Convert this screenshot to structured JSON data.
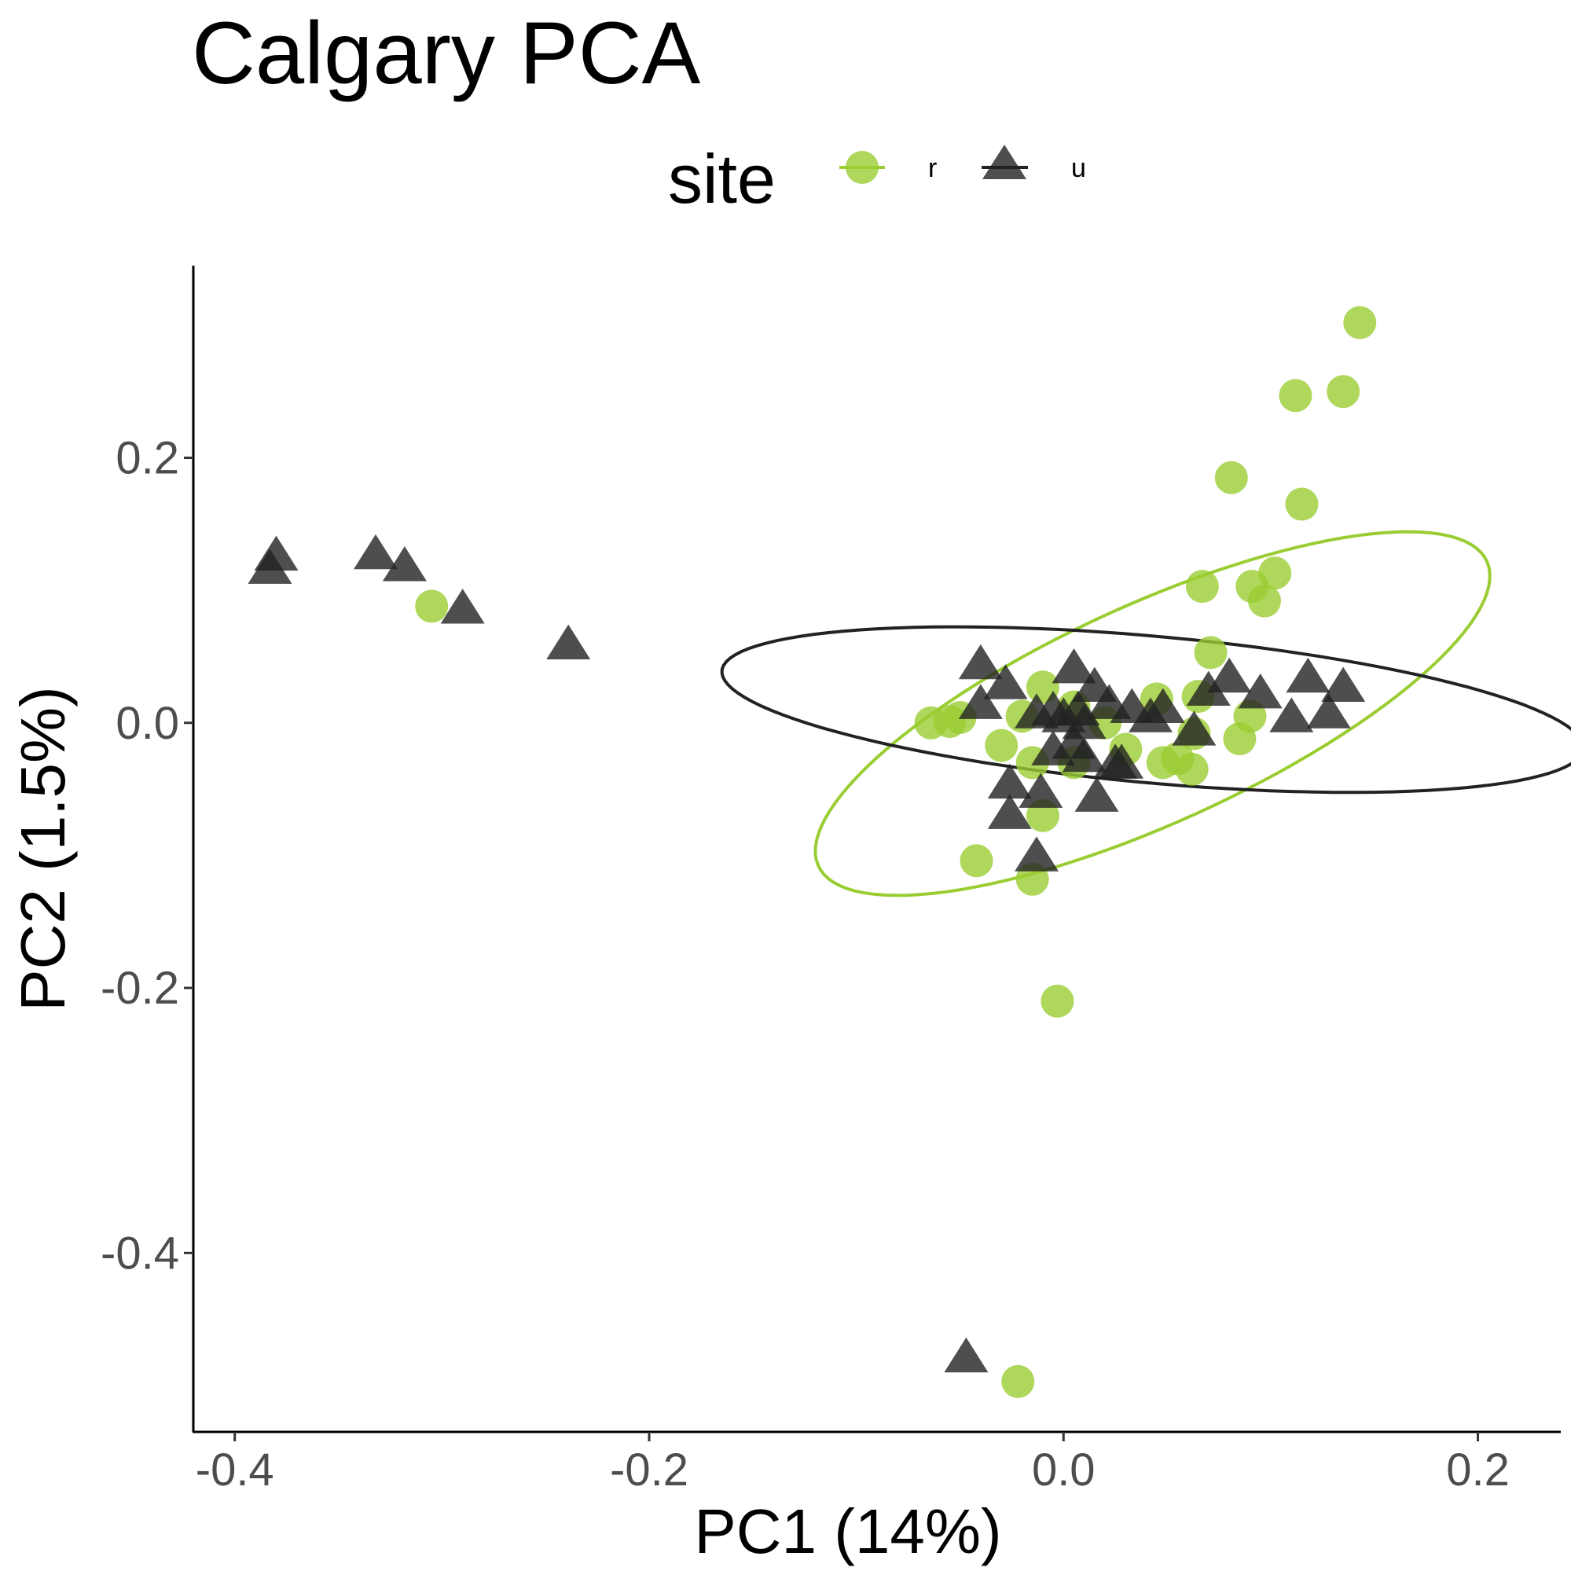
{
  "chart_data": {
    "type": "scatter",
    "title": "Calgary PCA",
    "xlabel": "PC1 (14%)",
    "ylabel": "PC2 (1.5%)",
    "xlim": [
      -0.42,
      0.24
    ],
    "ylim": [
      -0.535,
      0.345
    ],
    "xticks": [
      -0.4,
      -0.2,
      0.0,
      0.2
    ],
    "xtick_labels": [
      "-0.4",
      "-0.2",
      "0.0",
      "0.2"
    ],
    "yticks": [
      -0.4,
      -0.2,
      0.0,
      0.2
    ],
    "ytick_labels": [
      "-0.4",
      "-0.2",
      "0.0",
      "0.2"
    ],
    "grid": false,
    "legend": {
      "title": "site",
      "placement": "top",
      "labels": [
        "r",
        "u"
      ]
    },
    "series": [
      {
        "name": "r",
        "marker": "circle",
        "color": "#9acd32",
        "ellipse": {
          "cx": 0.043,
          "cy": 0.007,
          "a": 0.2,
          "b": 0.073,
          "angle_deg": 38.6
        },
        "points": [
          [
            0.143,
            0.302
          ],
          [
            0.135,
            0.25
          ],
          [
            0.112,
            0.247
          ],
          [
            0.081,
            0.185
          ],
          [
            0.115,
            0.165
          ],
          [
            0.102,
            0.113
          ],
          [
            0.067,
            0.103
          ],
          [
            0.091,
            0.103
          ],
          [
            0.097,
            0.092
          ],
          [
            0.071,
            0.053
          ],
          [
            -0.305,
            0.088
          ],
          [
            -0.064,
            0.0
          ],
          [
            -0.055,
            0.001
          ],
          [
            -0.05,
            0.004
          ],
          [
            -0.01,
            0.027
          ],
          [
            -0.02,
            0.005
          ],
          [
            0.005,
            0.012
          ],
          [
            0.02,
            0.0
          ],
          [
            0.045,
            0.018
          ],
          [
            0.065,
            0.02
          ],
          [
            0.09,
            0.005
          ],
          [
            -0.03,
            -0.017
          ],
          [
            -0.015,
            -0.03
          ],
          [
            0.005,
            -0.03
          ],
          [
            0.03,
            -0.02
          ],
          [
            0.048,
            -0.03
          ],
          [
            0.055,
            -0.027
          ],
          [
            0.062,
            -0.035
          ],
          [
            0.085,
            -0.012
          ],
          [
            0.063,
            -0.008
          ],
          [
            -0.01,
            -0.07
          ],
          [
            -0.042,
            -0.104
          ],
          [
            -0.015,
            -0.118
          ],
          [
            -0.003,
            -0.21
          ],
          [
            -0.022,
            -0.497
          ]
        ]
      },
      {
        "name": "u",
        "marker": "triangle",
        "color": "#222222",
        "ellipse": {
          "cx": 0.043,
          "cy": 0.01,
          "a": 0.21,
          "b": 0.055,
          "angle_deg": -8.4
        },
        "points": [
          [
            -0.38,
            0.127
          ],
          [
            -0.383,
            0.117
          ],
          [
            -0.332,
            0.128
          ],
          [
            -0.318,
            0.119
          ],
          [
            -0.29,
            0.087
          ],
          [
            -0.239,
            0.06
          ],
          [
            -0.04,
            0.045
          ],
          [
            -0.04,
            0.015
          ],
          [
            -0.028,
            0.03
          ],
          [
            -0.013,
            0.008
          ],
          [
            0.005,
            0.042
          ],
          [
            0.015,
            0.028
          ],
          [
            0.022,
            0.015
          ],
          [
            0.033,
            0.012
          ],
          [
            0.048,
            0.012
          ],
          [
            0.042,
            0.005
          ],
          [
            -0.005,
            0.01
          ],
          [
            0.0,
            0.005
          ],
          [
            0.01,
            0.0
          ],
          [
            0.007,
            0.01
          ],
          [
            0.005,
            -0.015
          ],
          [
            -0.005,
            -0.02
          ],
          [
            0.01,
            -0.025
          ],
          [
            0.025,
            -0.03
          ],
          [
            0.028,
            -0.03
          ],
          [
            0.063,
            -0.005
          ],
          [
            0.07,
            0.025
          ],
          [
            0.08,
            0.035
          ],
          [
            0.095,
            0.023
          ],
          [
            0.11,
            0.005
          ],
          [
            0.118,
            0.035
          ],
          [
            0.128,
            0.008
          ],
          [
            0.135,
            0.028
          ],
          [
            -0.026,
            -0.045
          ],
          [
            -0.011,
            -0.052
          ],
          [
            -0.026,
            -0.068
          ],
          [
            0.016,
            -0.055
          ],
          [
            -0.013,
            -0.1
          ],
          [
            -0.047,
            -0.478
          ]
        ]
      }
    ]
  }
}
